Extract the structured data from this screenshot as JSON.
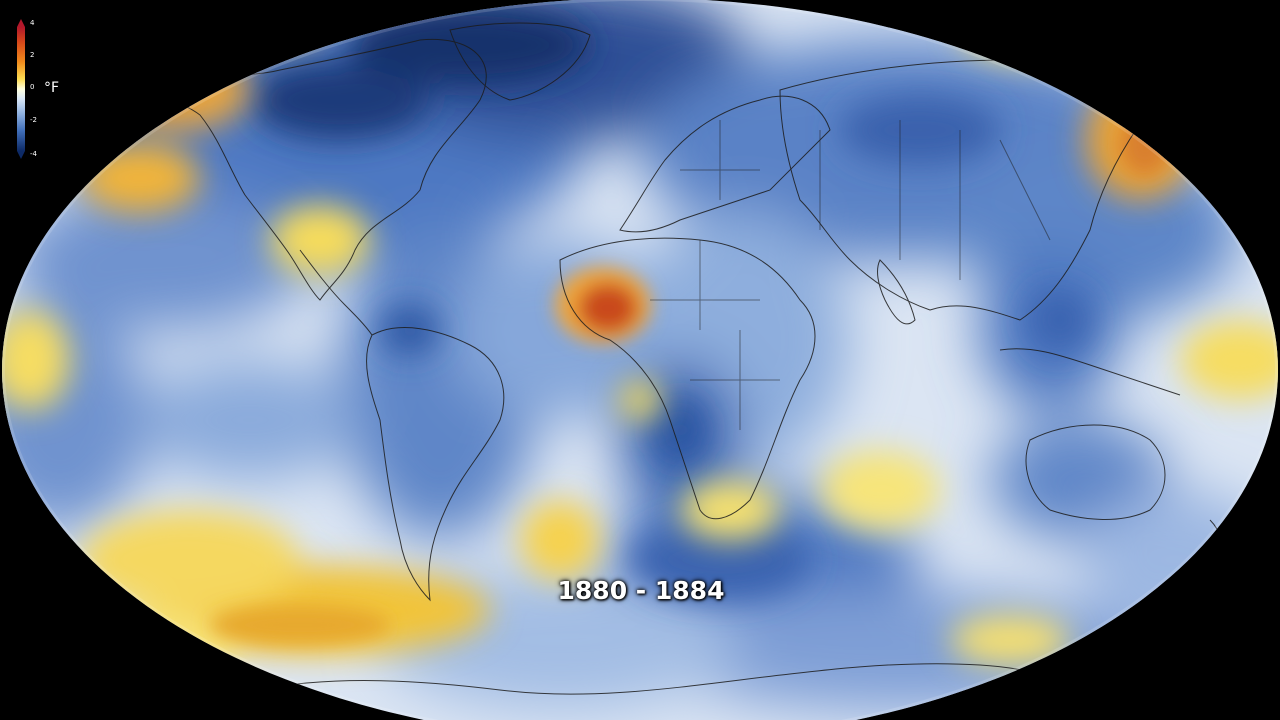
{
  "map": {
    "period_label": "1880 - 1884",
    "projection": "robinson-like ellipse, world map centered near 0° longitude",
    "colors": {
      "background": "#000000",
      "ocean_base": "#cfddf1",
      "deep_cold": "#13306e",
      "cold": "#3f6cb8",
      "cool": "#8fb1e0",
      "neutral": "#eef2f8",
      "warm": "#f7e16a",
      "hot": "#e8a22b",
      "very_hot": "#c0391b",
      "border_line": "#1a1a1a"
    },
    "anomaly_regions": [
      {
        "region": "West Africa coast",
        "tone": "very_hot"
      },
      {
        "region": "Alaska",
        "tone": "hot"
      },
      {
        "region": "North Pacific",
        "tone": "hot"
      },
      {
        "region": "Japan / Kamchatka",
        "tone": "hot"
      },
      {
        "region": "Southern Pacific",
        "tone": "warm"
      },
      {
        "region": "South Atlantic",
        "tone": "warm"
      },
      {
        "region": "Southern Africa",
        "tone": "warm"
      },
      {
        "region": "Gulf of Mexico",
        "tone": "warm"
      },
      {
        "region": "Greenland / Canada",
        "tone": "deep_cold"
      },
      {
        "region": "Siberia / Central Asia",
        "tone": "cold"
      },
      {
        "region": "South America",
        "tone": "cold"
      },
      {
        "region": "Southern Ocean",
        "tone": "cold"
      }
    ]
  },
  "legend": {
    "unit": "°F",
    "ticks": [
      "4",
      "2",
      "0",
      "-2",
      "-4"
    ]
  }
}
